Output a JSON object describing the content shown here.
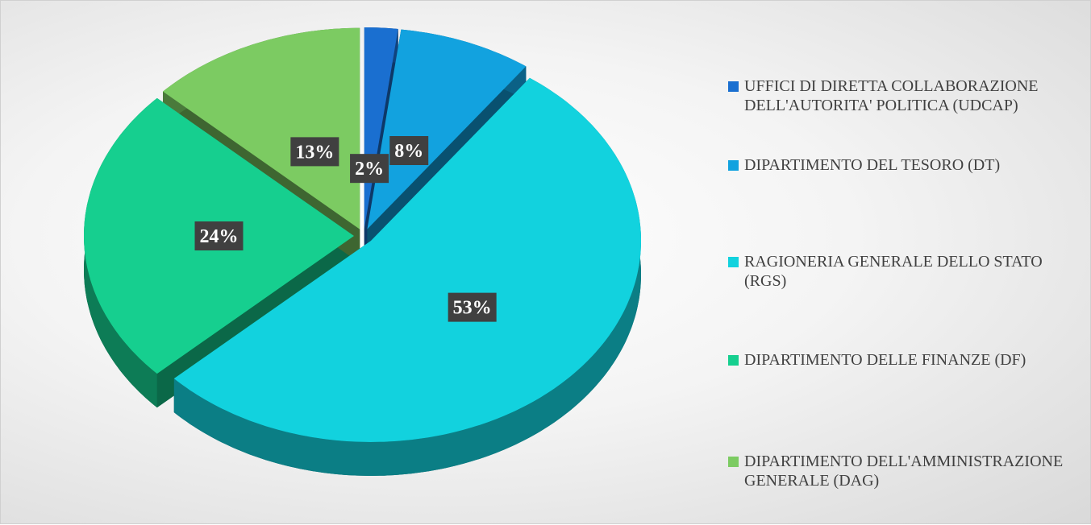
{
  "chart_data": {
    "type": "pie",
    "categories": [
      "UFFICI DI DIRETTA COLLABORAZIONE DELL'AUTORITA' POLITICA (UDCAP)",
      "DIPARTIMENTO DEL TESORO (DT)",
      "RAGIONERIA GENERALE DELLO STATO (RGS)",
      "DIPARTIMENTO DELLE FINANZE (DF)",
      "DIPARTIMENTO DELL'AMMINISTRAZIONE GENERALE (DAG)"
    ],
    "values": [
      2,
      8,
      53,
      24,
      13
    ],
    "value_labels": [
      "2%",
      "8%",
      "53%",
      "24%",
      "13%"
    ],
    "colors": [
      "#1a6fd0",
      "#12a2df",
      "#12d2de",
      "#16cf8f",
      "#7ccb62"
    ],
    "legend": "right"
  }
}
